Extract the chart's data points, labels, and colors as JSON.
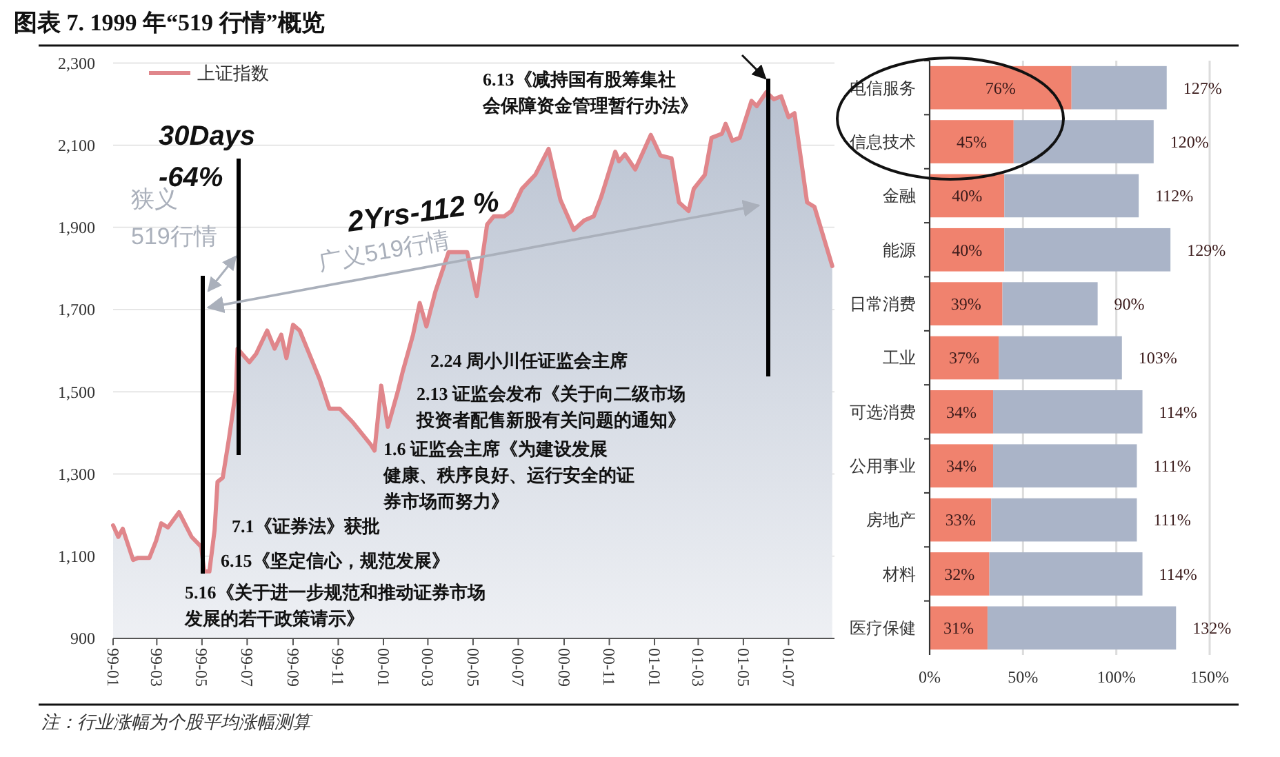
{
  "chart_data": [
    {
      "type": "area",
      "title": "图表 7. 1999 年“519 行情”概览",
      "series": [
        {
          "name": "上证指数",
          "color": "#e0868b",
          "type": "area",
          "x": [
            "1999-01-01",
            "1999-01-08",
            "1999-01-14",
            "1999-01-28",
            "1999-02-04",
            "1999-02-19",
            "1999-02-28",
            "1999-03-07",
            "1999-03-16",
            "1999-03-31",
            "1999-04-17",
            "1999-04-30",
            "1999-05-04",
            "1999-05-11",
            "1999-05-18",
            "1999-05-22",
            "1999-05-29",
            "1999-06-06",
            "1999-06-16",
            "1999-06-18",
            "1999-07-04",
            "1999-07-13",
            "1999-07-28",
            "1999-08-07",
            "1999-08-16",
            "1999-08-23",
            "1999-09-01",
            "1999-09-10",
            "1999-10-07",
            "1999-10-20",
            "1999-11-03",
            "1999-11-21",
            "1999-12-15",
            "1999-12-20",
            "1999-12-29",
            "2000-01-07",
            "2000-01-21",
            "2000-01-27",
            "2000-02-10",
            "2000-02-19",
            "2000-02-28",
            "2000-03-11",
            "2000-03-29",
            "2000-04-23",
            "2000-05-06",
            "2000-05-20",
            "2000-05-29",
            "2000-06-12",
            "2000-06-22",
            "2000-07-06",
            "2000-07-24",
            "2000-08-11",
            "2000-08-27",
            "2000-09-14",
            "2000-09-28",
            "2000-10-11",
            "2000-10-21",
            "2000-11-09",
            "2000-11-14",
            "2000-11-22",
            "2000-12-06",
            "2000-12-27",
            "2001-01-09",
            "2001-01-24",
            "2001-02-03",
            "2001-02-16",
            "2001-02-23",
            "2001-03-10",
            "2001-03-19",
            "2001-04-02",
            "2001-04-07",
            "2001-04-16",
            "2001-04-26",
            "2001-05-12",
            "2001-05-19",
            "2001-06-01",
            "2001-06-11",
            "2001-06-21",
            "2001-07-01",
            "2001-07-09",
            "2001-07-26",
            "2001-08-05",
            "2001-08-29"
          ],
          "values": [
            1175,
            1147,
            1167,
            1091,
            1096,
            1096,
            1137,
            1180,
            1170,
            1207,
            1147,
            1123,
            1063,
            1063,
            1163,
            1281,
            1291,
            1381,
            1505,
            1605,
            1572,
            1592,
            1649,
            1605,
            1639,
            1582,
            1663,
            1649,
            1530,
            1459,
            1459,
            1425,
            1371,
            1357,
            1515,
            1415,
            1505,
            1549,
            1639,
            1716,
            1659,
            1743,
            1840,
            1840,
            1733,
            1907,
            1927,
            1927,
            1940,
            1994,
            2028,
            2091,
            1967,
            1894,
            1917,
            1927,
            1974,
            2084,
            2061,
            2078,
            2041,
            2125,
            2075,
            2068,
            1961,
            1940,
            1994,
            2028,
            2118,
            2128,
            2152,
            2111,
            2118,
            2208,
            2195,
            2229,
            2212,
            2219,
            2168,
            2178,
            1961,
            1950,
            1806
          ]
        }
      ],
      "xlim": [
        "1999-01-01",
        "2001-09-01"
      ],
      "xticks": [
        {
          "value": "1999-01-01",
          "label": "99-01"
        },
        {
          "value": "1999-03-01",
          "label": "99-03"
        },
        {
          "value": "1999-05-01",
          "label": "99-05"
        },
        {
          "value": "1999-07-01",
          "label": "99-07"
        },
        {
          "value": "1999-09-01",
          "label": "99-09"
        },
        {
          "value": "1999-11-01",
          "label": "99-11"
        },
        {
          "value": "2000-01-01",
          "label": "00-01"
        },
        {
          "value": "2000-03-01",
          "label": "00-03"
        },
        {
          "value": "2000-05-01",
          "label": "00-05"
        },
        {
          "value": "2000-07-01",
          "label": "00-07"
        },
        {
          "value": "2000-09-01",
          "label": "00-09"
        },
        {
          "value": "2000-11-01",
          "label": "00-11"
        },
        {
          "value": "2001-01-01",
          "label": "01-01"
        },
        {
          "value": "2001-03-01",
          "label": "01-03"
        },
        {
          "value": "2001-05-01",
          "label": "01-05"
        },
        {
          "value": "2001-07-01",
          "label": "01-07"
        }
      ],
      "ylim": [
        900,
        2300
      ],
      "yticks": [
        900,
        {
          "value": 1100,
          "label": "1,100"
        },
        {
          "value": 1300,
          "label": "1,300"
        },
        {
          "value": 1500,
          "label": "1,500"
        },
        {
          "value": 1700,
          "label": "1,700"
        },
        {
          "value": 1900,
          "label": "1,900"
        },
        {
          "value": 2100,
          "label": "2,100"
        },
        {
          "value": 2300,
          "label": "2,300"
        }
      ],
      "grid": "y",
      "legend": "top left",
      "annotations": [
        "30Days\n-64%",
        "狭义519行情",
        "2Yrs-112 %",
        "广义519行情",
        "6.13《减持国有股筹集社会保障资金管理暂行办法》",
        "2.24 周小川任证监会主席",
        "2.13 证监会发布《关于向二级市场投资者配售新股有关问题的通知》",
        "1.6 证监会主席《为建设发展健康、秩序良好、运行安全的证券市场而努力》",
        "7.1《证券法》获批",
        "6.15《坚定信心，规范发展》",
        "5.16《关于进一步规范和推动证券市场发展的若干政策请示》"
      ]
    },
    {
      "type": "bar",
      "orientation": "horizontal",
      "stacked": true,
      "categories": [
        "电信服务",
        "信息技术",
        "金融",
        "能源",
        "日常消费",
        "工业",
        "可选消费",
        "公用事业",
        "房地产",
        "材料",
        "医疗保健"
      ],
      "series": [
        {
          "color": "#f0826e",
          "values": [
            76,
            45,
            40,
            40,
            39,
            37,
            34,
            34,
            33,
            32,
            31
          ],
          "value_labels": [
            "76%",
            "45%",
            "40%",
            "40%",
            "39%",
            "37%",
            "34%",
            "34%",
            "33%",
            "32%",
            "31%"
          ]
        },
        {
          "color": "#aab4c8",
          "values": [
            51,
            75,
            72,
            89,
            51,
            66,
            80,
            77,
            78,
            82,
            101
          ]
        }
      ],
      "totals": [
        "127%",
        "120%",
        "112%",
        "129%",
        "90%",
        "103%",
        "114%",
        "111%",
        "111%",
        "114%",
        "132%"
      ],
      "xlim": [
        0,
        150
      ],
      "xticks": [
        {
          "value": 0,
          "label": "0%"
        },
        {
          "value": 50,
          "label": "50%"
        },
        {
          "value": 100,
          "label": "100%"
        },
        {
          "value": 150,
          "label": "150%"
        }
      ],
      "grid": "x",
      "annotations": [
        "注：行业涨幅为个股平均涨幅测算"
      ]
    }
  ]
}
